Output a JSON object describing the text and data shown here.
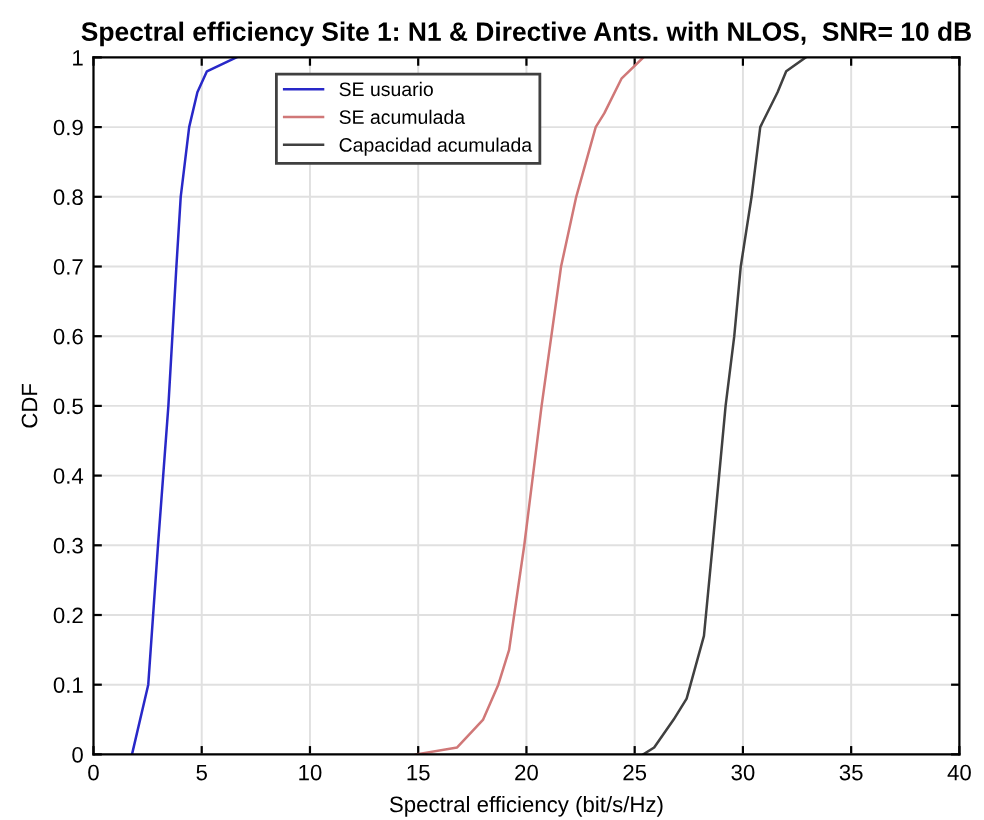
{
  "chart_data": {
    "type": "line",
    "title": "Spectral efficiency Site 1: N1 & Directive Ants. with NLOS,  SNR= 10 dB",
    "xlabel": "Spectral efficiency (bit/s/Hz)",
    "ylabel": "CDF",
    "xlim": [
      0,
      40
    ],
    "ylim": [
      0,
      1
    ],
    "xticks": [
      0,
      5,
      10,
      15,
      20,
      25,
      30,
      35,
      40
    ],
    "yticks": [
      0,
      0.1,
      0.2,
      0.3,
      0.4,
      0.5,
      0.6,
      0.7,
      0.8,
      0.9,
      1
    ],
    "grid": true,
    "legend": "top",
    "line_style": "solid",
    "marker": "none",
    "series": [
      {
        "name": "SE usuario",
        "color": "#2828c8",
        "x": [
          1.78,
          2.53,
          2.98,
          3.46,
          3.83,
          4.03,
          4.42,
          4.8,
          5.24,
          6.6
        ],
        "values": [
          0,
          0.1,
          0.3,
          0.5,
          0.7,
          0.8,
          0.9,
          0.95,
          0.98,
          1
        ]
      },
      {
        "name": "SE acumulada",
        "color": "#d07878",
        "x": [
          14.9,
          16.8,
          18.0,
          18.7,
          19.2,
          19.9,
          20.7,
          21.6,
          22.3,
          23.2,
          23.6,
          24.4,
          25.4
        ],
        "values": [
          0,
          0.01,
          0.05,
          0.1,
          0.15,
          0.3,
          0.5,
          0.7,
          0.8,
          0.9,
          0.92,
          0.97,
          1
        ]
      },
      {
        "name": "Capacidad acumulada",
        "color": "#404040",
        "x": [
          25.4,
          25.9,
          26.8,
          27.4,
          28.2,
          28.6,
          29.2,
          29.6,
          29.9,
          30.4,
          30.8,
          31.6,
          32.0,
          32.9
        ],
        "values": [
          0,
          0.01,
          0.05,
          0.08,
          0.17,
          0.3,
          0.5,
          0.6,
          0.7,
          0.8,
          0.9,
          0.95,
          0.98,
          1
        ]
      }
    ]
  }
}
